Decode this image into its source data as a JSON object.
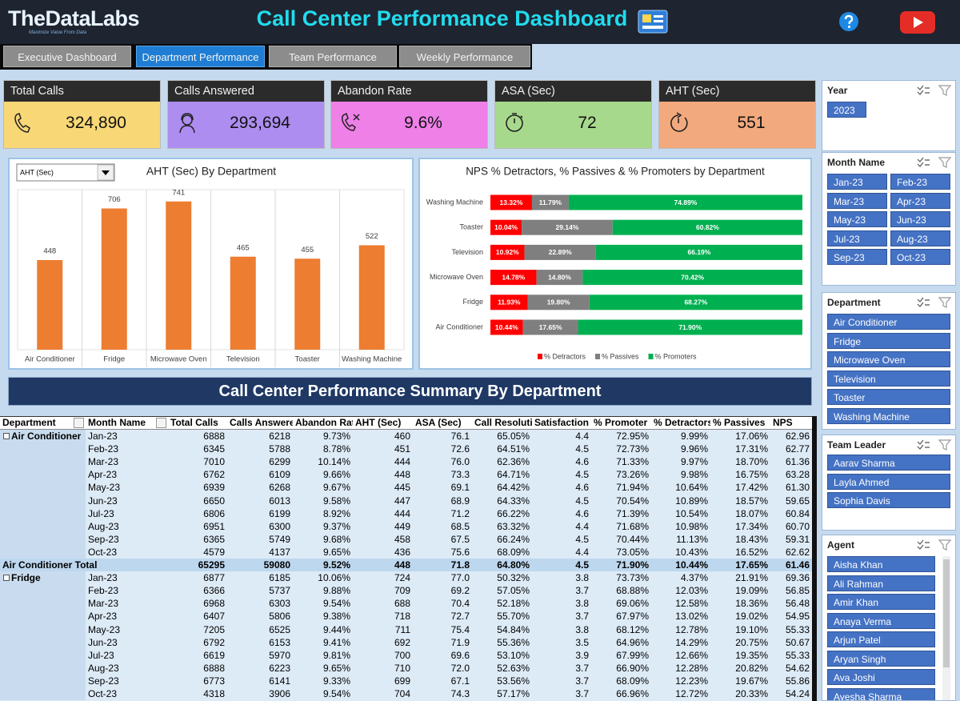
{
  "header": {
    "logo": "TheDataLabs",
    "tagline": "Maximize Value From Data",
    "title": "Call Center Performance Dashboard"
  },
  "tabs": [
    "Executive Dashboard",
    "Department Performance",
    "Team Performance",
    "Weekly Performance"
  ],
  "kpis": [
    {
      "label": "Total Calls",
      "value": "324,890"
    },
    {
      "label": "Calls Answered",
      "value": "293,694"
    },
    {
      "label": "Abandon Rate",
      "value": "9.6%"
    },
    {
      "label": "ASA (Sec)",
      "value": "72"
    },
    {
      "label": "AHT (Sec)",
      "value": "551"
    }
  ],
  "chart_data": [
    {
      "type": "bar",
      "title": "AHT (Sec) By Department",
      "selector": "AHT (Sec)",
      "categories": [
        "Air Conditioner",
        "Fridge",
        "Microwave  Oven",
        "Television",
        "Toaster",
        "Washing Machine"
      ],
      "values": [
        448,
        706,
        741,
        465,
        455,
        522
      ],
      "color": "#ed7d31",
      "ylim": [
        0,
        800
      ]
    },
    {
      "type": "stackedbar",
      "title": "NPS % Detractors, % Passives & % Promoters by Department",
      "categories": [
        "Washing Machine",
        "Toaster",
        "Television",
        "Microwave  Oven",
        "Fridge",
        "Air Conditioner"
      ],
      "xlim": [
        0,
        100
      ],
      "legend": "bottom",
      "series": [
        {
          "name": "% Detractors",
          "color": "#ff0000",
          "values": [
            13.32,
            10.04,
            10.92,
            14.78,
            11.93,
            10.44
          ],
          "value_labels": [
            "13.32%",
            "10.04%",
            "10.92%",
            "14.78%",
            "11.93%",
            "10.44%"
          ]
        },
        {
          "name": "% Passives",
          "color": "#7f7f7f",
          "values": [
            11.79,
            29.14,
            22.89,
            14.8,
            19.8,
            17.65
          ],
          "value_labels": [
            "11.79%",
            "29.14%",
            "22.89%",
            "14.80%",
            "19.80%",
            "17.65%"
          ]
        },
        {
          "name": "% Promoters",
          "color": "#00b050",
          "values": [
            74.89,
            60.82,
            66.19,
            70.42,
            68.27,
            71.9
          ],
          "value_labels": [
            "74.89%",
            "60.82%",
            "66.19%",
            "70.42%",
            "68.27%",
            "71.90%"
          ]
        }
      ]
    }
  ],
  "summary_title": "Call Center Performance Summary By Department",
  "table": {
    "columns": [
      "Department",
      "Month Name",
      "Total Calls",
      "Calls Answered",
      "Abandon Rate",
      "AHT (Sec)",
      "ASA (Sec)",
      "Call Resolutio",
      "Satisfaction Sc",
      "% Promoter",
      "% Detractors",
      "% Passives",
      "NPS"
    ],
    "groups": [
      {
        "department": "Air Conditioner",
        "rows": [
          [
            "Jan-23",
            "6888",
            "6218",
            "9.73%",
            "460",
            "76.1",
            "65.05%",
            "4.4",
            "72.95%",
            "9.99%",
            "17.06%",
            "62.96"
          ],
          [
            "Feb-23",
            "6345",
            "5788",
            "8.78%",
            "451",
            "72.6",
            "64.51%",
            "4.5",
            "72.73%",
            "9.96%",
            "17.31%",
            "62.77"
          ],
          [
            "Mar-23",
            "7010",
            "6299",
            "10.14%",
            "444",
            "76.0",
            "62.36%",
            "4.6",
            "71.33%",
            "9.97%",
            "18.70%",
            "61.36"
          ],
          [
            "Apr-23",
            "6762",
            "6109",
            "9.66%",
            "448",
            "73.3",
            "64.71%",
            "4.5",
            "73.26%",
            "9.98%",
            "16.75%",
            "63.28"
          ],
          [
            "May-23",
            "6939",
            "6268",
            "9.67%",
            "445",
            "69.1",
            "64.42%",
            "4.6",
            "71.94%",
            "10.64%",
            "17.42%",
            "61.30"
          ],
          [
            "Jun-23",
            "6650",
            "6013",
            "9.58%",
            "447",
            "68.9",
            "64.33%",
            "4.5",
            "70.54%",
            "10.89%",
            "18.57%",
            "59.65"
          ],
          [
            "Jul-23",
            "6806",
            "6199",
            "8.92%",
            "444",
            "71.2",
            "66.22%",
            "4.6",
            "71.39%",
            "10.54%",
            "18.07%",
            "60.84"
          ],
          [
            "Aug-23",
            "6951",
            "6300",
            "9.37%",
            "449",
            "68.5",
            "63.32%",
            "4.4",
            "71.68%",
            "10.98%",
            "17.34%",
            "60.70"
          ],
          [
            "Sep-23",
            "6365",
            "5749",
            "9.68%",
            "458",
            "67.5",
            "66.24%",
            "4.5",
            "70.44%",
            "11.13%",
            "18.43%",
            "59.31"
          ],
          [
            "Oct-23",
            "4579",
            "4137",
            "9.65%",
            "436",
            "75.6",
            "68.09%",
            "4.4",
            "73.05%",
            "10.43%",
            "16.52%",
            "62.62"
          ]
        ],
        "total": {
          "label": "Air Conditioner Total",
          "cells": [
            "65295",
            "59080",
            "9.52%",
            "448",
            "71.8",
            "64.80%",
            "4.5",
            "71.90%",
            "10.44%",
            "17.65%",
            "61.46"
          ]
        }
      },
      {
        "department": "Fridge",
        "rows": [
          [
            "Jan-23",
            "6877",
            "6185",
            "10.06%",
            "724",
            "77.0",
            "50.32%",
            "3.8",
            "73.73%",
            "4.37%",
            "21.91%",
            "69.36"
          ],
          [
            "Feb-23",
            "6366",
            "5737",
            "9.88%",
            "709",
            "69.2",
            "57.05%",
            "3.7",
            "68.88%",
            "12.03%",
            "19.09%",
            "56.85"
          ],
          [
            "Mar-23",
            "6968",
            "6303",
            "9.54%",
            "688",
            "70.4",
            "52.18%",
            "3.8",
            "69.06%",
            "12.58%",
            "18.36%",
            "56.48"
          ],
          [
            "Apr-23",
            "6407",
            "5806",
            "9.38%",
            "718",
            "72.7",
            "55.70%",
            "3.7",
            "67.97%",
            "13.02%",
            "19.02%",
            "54.95"
          ],
          [
            "May-23",
            "7205",
            "6525",
            "9.44%",
            "711",
            "75.4",
            "54.84%",
            "3.8",
            "68.12%",
            "12.78%",
            "19.10%",
            "55.33"
          ],
          [
            "Jun-23",
            "6792",
            "6153",
            "9.41%",
            "692",
            "71.9",
            "55.36%",
            "3.5",
            "64.96%",
            "14.29%",
            "20.75%",
            "50.67"
          ],
          [
            "Jul-23",
            "6619",
            "5970",
            "9.81%",
            "700",
            "69.6",
            "53.10%",
            "3.9",
            "67.99%",
            "12.66%",
            "19.35%",
            "55.33"
          ],
          [
            "Aug-23",
            "6888",
            "6223",
            "9.65%",
            "710",
            "72.0",
            "52.63%",
            "3.7",
            "66.90%",
            "12.28%",
            "20.82%",
            "54.62"
          ],
          [
            "Sep-23",
            "6773",
            "6141",
            "9.33%",
            "699",
            "67.1",
            "53.56%",
            "3.7",
            "68.09%",
            "12.23%",
            "19.67%",
            "55.86"
          ],
          [
            "Oct-23",
            "4318",
            "3906",
            "9.54%",
            "704",
            "74.3",
            "57.17%",
            "3.7",
            "66.96%",
            "12.72%",
            "20.33%",
            "54.24"
          ]
        ]
      }
    ]
  },
  "slicers": [
    {
      "title": "Year",
      "items": [
        "2023"
      ]
    },
    {
      "title": "Month Name",
      "items": [
        "Jan-23",
        "Feb-23",
        "Mar-23",
        "Apr-23",
        "May-23",
        "Jun-23",
        "Jul-23",
        "Aug-23",
        "Sep-23",
        "Oct-23"
      ]
    },
    {
      "title": "Department",
      "items": [
        "Air Conditioner",
        "Fridge",
        "Microwave  Oven",
        "Television",
        "Toaster",
        "Washing Machine"
      ]
    },
    {
      "title": "Team Leader",
      "items": [
        "Aarav Sharma",
        "Layla Ahmed",
        "Sophia Davis"
      ]
    },
    {
      "title": "Agent",
      "items": [
        "Aisha Khan",
        "Ali Rahman",
        "Amir Khan",
        "Anaya Verma",
        "Arjun Patel",
        "Aryan Singh",
        "Ava Joshi",
        "Ayesha Sharma"
      ]
    }
  ]
}
